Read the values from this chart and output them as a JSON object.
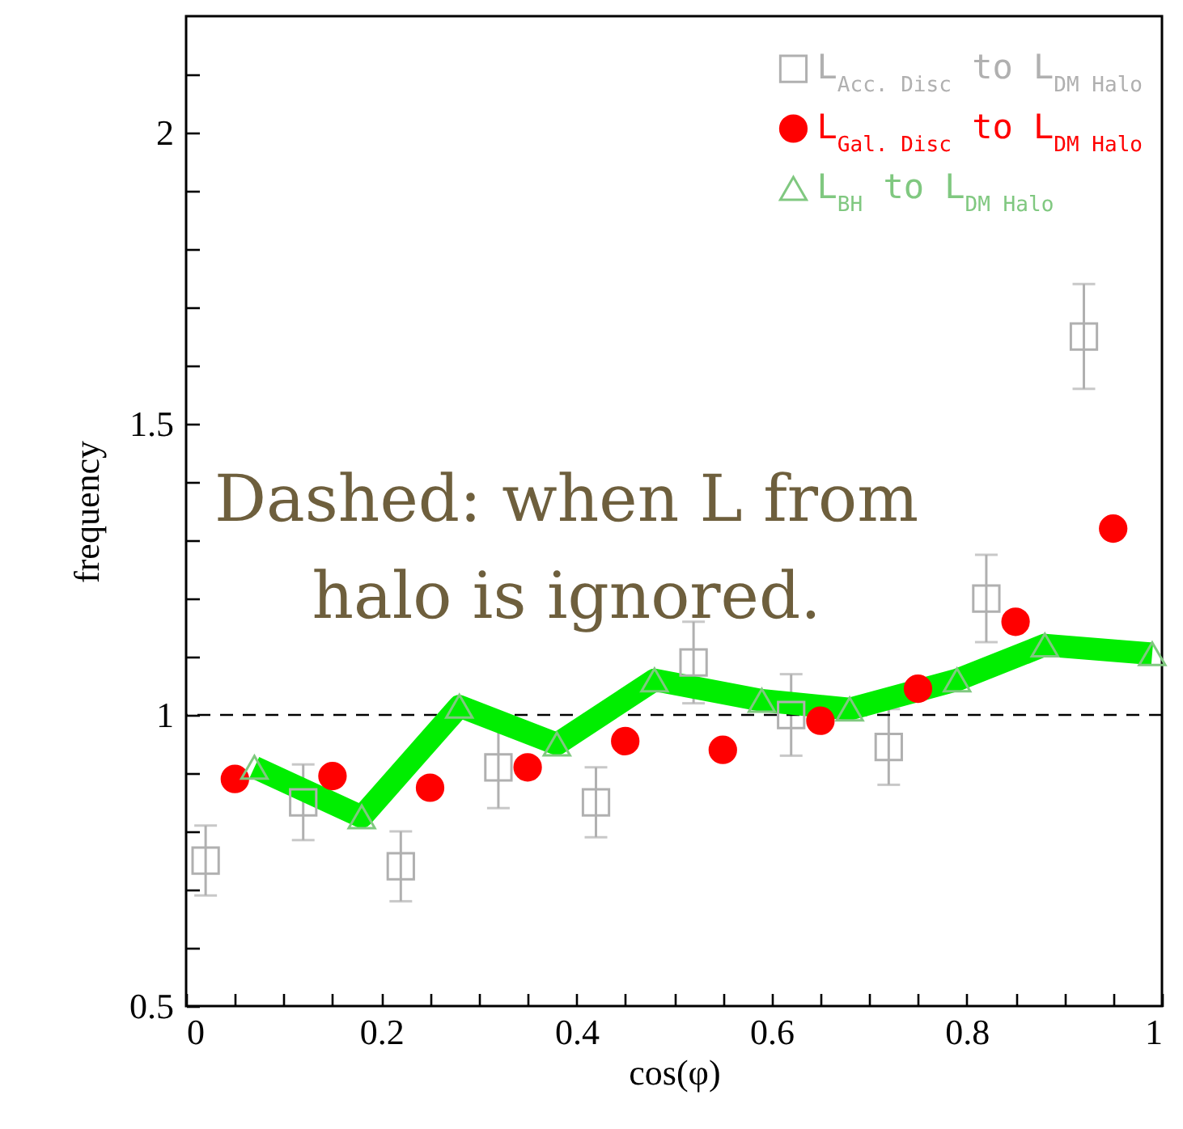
{
  "chart_data": {
    "type": "scatter",
    "xlabel": "cos(φ)",
    "ylabel": "frequency",
    "xlim": [
      0,
      1
    ],
    "ylim": [
      0.5,
      2.2
    ],
    "xticks": [
      0,
      {
        "value": 0.05,
        "label": null
      },
      {
        "value": 0.1,
        "label": null
      },
      {
        "value": 0.15,
        "label": null
      },
      0.2,
      {
        "value": 0.25,
        "label": null
      },
      {
        "value": 0.3,
        "label": null
      },
      {
        "value": 0.35,
        "label": null
      },
      0.4,
      {
        "value": 0.45,
        "label": null
      },
      {
        "value": 0.5,
        "label": null
      },
      {
        "value": 0.55,
        "label": null
      },
      0.6,
      {
        "value": 0.65,
        "label": null
      },
      {
        "value": 0.7,
        "label": null
      },
      {
        "value": 0.75,
        "label": null
      },
      0.8,
      {
        "value": 0.85,
        "label": null
      },
      {
        "value": 0.9,
        "label": null
      },
      {
        "value": 0.95,
        "label": null
      },
      1
    ],
    "yticks": [
      0.5,
      {
        "value": 0.6,
        "label": null
      },
      {
        "value": 0.7,
        "label": null
      },
      {
        "value": 0.8,
        "label": null
      },
      {
        "value": 0.9,
        "label": null
      },
      1,
      {
        "value": 1.1,
        "label": null
      },
      {
        "value": 1.2,
        "label": null
      },
      {
        "value": 1.3,
        "label": null
      },
      {
        "value": 1.4,
        "label": null
      },
      1.5,
      {
        "value": 1.6,
        "label": null
      },
      {
        "value": 1.7,
        "label": null
      },
      {
        "value": 1.8,
        "label": null
      },
      {
        "value": 1.9,
        "label": null
      },
      2,
      {
        "value": 2.1,
        "label": null
      }
    ],
    "grid": false,
    "legend": "top right",
    "ref_lines": [
      {
        "axis": "y",
        "value": 1,
        "color": "#000000",
        "line_style": "dashed"
      }
    ],
    "annotations": [
      "Dashed: when L from halo is ignored."
    ],
    "series": [
      {
        "name": "L$_{Acc. Disc}$ to L$_{DM Halo}$",
        "marker": "square",
        "color": "#b0b0b0",
        "x": [
          0.02,
          0.12,
          0.22,
          0.32,
          0.42,
          0.52,
          0.62,
          0.72,
          0.82,
          0.92
        ],
        "values": [
          0.75,
          0.85,
          0.74,
          0.91,
          0.85,
          1.09,
          1.0,
          0.945,
          1.2,
          1.65
        ],
        "errors": [
          0.06,
          0.065,
          0.06,
          0.07,
          0.06,
          0.07,
          0.07,
          0.065,
          0.075,
          0.09
        ]
      },
      {
        "name": "L$_{Gal. Disc}$ to L$_{DM Halo}$",
        "marker": "circle",
        "color": "#ff0000",
        "x": [
          0.05,
          0.15,
          0.25,
          0.35,
          0.45,
          0.55,
          0.65,
          0.75,
          0.85,
          0.95
        ],
        "values": [
          0.89,
          0.895,
          0.875,
          0.91,
          0.955,
          0.94,
          0.99,
          1.045,
          1.16,
          1.32
        ]
      },
      {
        "name": "L$_{BH}$ to L$_{DM Halo}$",
        "marker": "triangle",
        "color": "#80c880",
        "x": [
          0.07,
          0.18,
          0.28,
          0.38,
          0.48,
          0.59,
          0.68,
          0.79,
          0.88,
          0.99
        ],
        "values": [
          0.91,
          0.825,
          1.015,
          0.95,
          1.06,
          1.025,
          1.01,
          1.06,
          1.12,
          1.105
        ]
      },
      {
        "type": "line",
        "marker": "none",
        "color": "#00ee00",
        "x": [
          0.07,
          0.18,
          0.28,
          0.38,
          0.48,
          0.59,
          0.68,
          0.79,
          0.88,
          0.99
        ],
        "values": [
          0.91,
          0.825,
          1.015,
          0.95,
          1.06,
          1.025,
          1.01,
          1.06,
          1.12,
          1.105
        ]
      }
    ]
  }
}
